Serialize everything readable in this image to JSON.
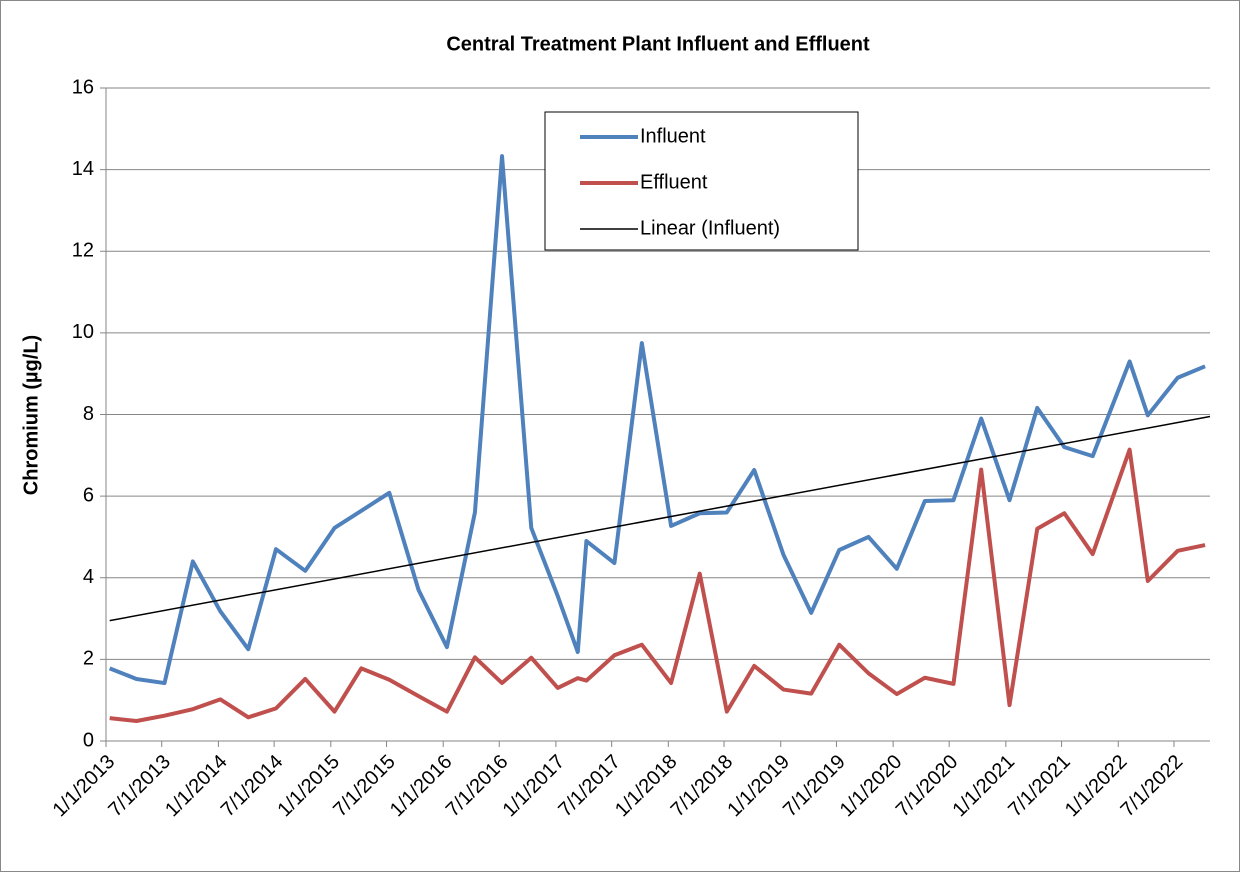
{
  "chart_data": {
    "type": "line",
    "title": "Central Treatment Plant Influent and Effluent",
    "y_label": "Chromium (µg/L)",
    "x": [
      "2013-01-13",
      "2013-04-10",
      "2013-07-10",
      "2013-10-10",
      "2014-01-07",
      "2014-04-08",
      "2014-07-07",
      "2014-10-10",
      "2015-01-13",
      "2015-04-10",
      "2015-07-10",
      "2015-10-13",
      "2016-01-13",
      "2016-04-13",
      "2016-07-10",
      "2016-10-13",
      "2017-01-07",
      "2017-03-13",
      "2017-04-10",
      "2017-07-10",
      "2017-10-07",
      "2018-01-10",
      "2018-04-13",
      "2018-07-10",
      "2018-10-07",
      "2019-01-10",
      "2019-04-10",
      "2019-07-10",
      "2019-10-13",
      "2020-01-13",
      "2020-04-13",
      "2020-07-15",
      "2020-10-13",
      "2021-01-13",
      "2021-04-13",
      "2021-07-10",
      "2021-10-10",
      "2022-02-07",
      "2022-04-07",
      "2022-07-13",
      "2022-10-10"
    ],
    "series": [
      {
        "name": "Influent",
        "color": "#4f81bd",
        "values": [
          1.78,
          1.52,
          1.42,
          4.4,
          3.18,
          2.25,
          4.7,
          4.17,
          5.22,
          5.64,
          6.08,
          3.7,
          2.3,
          5.6,
          14.33,
          5.22,
          3.55,
          2.18,
          4.9,
          4.36,
          9.75,
          5.27,
          5.58,
          5.6,
          6.64,
          4.56,
          3.14,
          4.68,
          5.0,
          4.22,
          5.88,
          5.9,
          7.9,
          5.9,
          8.16,
          7.2,
          6.98,
          9.3,
          7.98,
          8.9,
          9.18
        ]
      },
      {
        "name": "Effluent",
        "color": "#c0504d",
        "values": [
          0.56,
          0.49,
          0.62,
          0.78,
          1.02,
          0.58,
          0.8,
          1.52,
          0.72,
          1.78,
          1.5,
          1.1,
          0.72,
          2.05,
          1.42,
          2.04,
          1.3,
          1.54,
          1.48,
          2.1,
          2.36,
          1.42,
          4.1,
          0.72,
          1.84,
          1.26,
          1.16,
          2.36,
          1.66,
          1.15,
          1.55,
          1.4,
          6.65,
          0.88,
          5.2,
          5.58,
          4.58,
          7.14,
          3.92,
          4.66,
          4.8
        ]
      },
      {
        "name": "Linear (Influent)",
        "color": "#000000",
        "x": [
          "2013-01-13",
          "2022-10-26"
        ],
        "values": [
          2.95,
          7.95
        ]
      }
    ],
    "xlim": [
      "2013-01-01",
      "2022-10-26"
    ],
    "xticks": [
      {
        "value": "2013-01-01",
        "label": "1/1/2013"
      },
      {
        "value": "2013-07-01",
        "label": "7/1/2013"
      },
      {
        "value": "2014-01-01",
        "label": "1/1/2014"
      },
      {
        "value": "2014-07-01",
        "label": "7/1/2014"
      },
      {
        "value": "2015-01-01",
        "label": "1/1/2015"
      },
      {
        "value": "2015-07-01",
        "label": "7/1/2015"
      },
      {
        "value": "2016-01-01",
        "label": "1/1/2016"
      },
      {
        "value": "2016-07-01",
        "label": "7/1/2016"
      },
      {
        "value": "2017-01-01",
        "label": "1/1/2017"
      },
      {
        "value": "2017-07-01",
        "label": "7/1/2017"
      },
      {
        "value": "2018-01-01",
        "label": "1/1/2018"
      },
      {
        "value": "2018-07-01",
        "label": "7/1/2018"
      },
      {
        "value": "2019-01-01",
        "label": "1/1/2019"
      },
      {
        "value": "2019-07-01",
        "label": "7/1/2019"
      },
      {
        "value": "2020-01-01",
        "label": "1/1/2020"
      },
      {
        "value": "2020-07-01",
        "label": "7/1/2020"
      },
      {
        "value": "2021-01-01",
        "label": "1/1/2021"
      },
      {
        "value": "2021-07-01",
        "label": "7/1/2021"
      },
      {
        "value": "2022-01-01",
        "label": "1/1/2022"
      },
      {
        "value": "2022-07-01",
        "label": "7/1/2022"
      }
    ],
    "ylim": [
      0,
      16
    ],
    "yticks": [
      0,
      2,
      4,
      6,
      8,
      10,
      12,
      14,
      16
    ],
    "grid": true,
    "legend": "top"
  }
}
